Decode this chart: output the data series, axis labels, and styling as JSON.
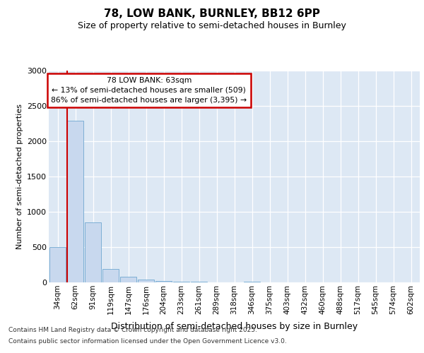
{
  "title": "78, LOW BANK, BURNLEY, BB12 6PP",
  "subtitle": "Size of property relative to semi-detached houses in Burnley",
  "xlabel": "Distribution of semi-detached houses by size in Burnley",
  "ylabel": "Number of semi-detached properties",
  "bins": [
    "34sqm",
    "62sqm",
    "91sqm",
    "119sqm",
    "147sqm",
    "176sqm",
    "204sqm",
    "233sqm",
    "261sqm",
    "289sqm",
    "318sqm",
    "346sqm",
    "375sqm",
    "403sqm",
    "432sqm",
    "460sqm",
    "488sqm",
    "517sqm",
    "545sqm",
    "574sqm",
    "602sqm"
  ],
  "values": [
    500,
    2290,
    850,
    195,
    80,
    45,
    25,
    15,
    8,
    0,
    0,
    12,
    0,
    0,
    0,
    0,
    0,
    0,
    0,
    0,
    0
  ],
  "bar_color": "#c8d8ee",
  "bar_edge_color": "#6fa8d0",
  "highlight_line_color": "#cc0000",
  "annotation_title": "78 LOW BANK: 63sqm",
  "annotation_line1": "← 13% of semi-detached houses are smaller (509)",
  "annotation_line2": "86% of semi-detached houses are larger (3,395) →",
  "annotation_box_color": "#cc0000",
  "ylim": [
    0,
    3000
  ],
  "yticks": [
    0,
    500,
    1000,
    1500,
    2000,
    2500,
    3000
  ],
  "background_color": "#dde8f4",
  "footer_line1": "Contains HM Land Registry data © Crown copyright and database right 2025.",
  "footer_line2": "Contains public sector information licensed under the Open Government Licence v3.0."
}
